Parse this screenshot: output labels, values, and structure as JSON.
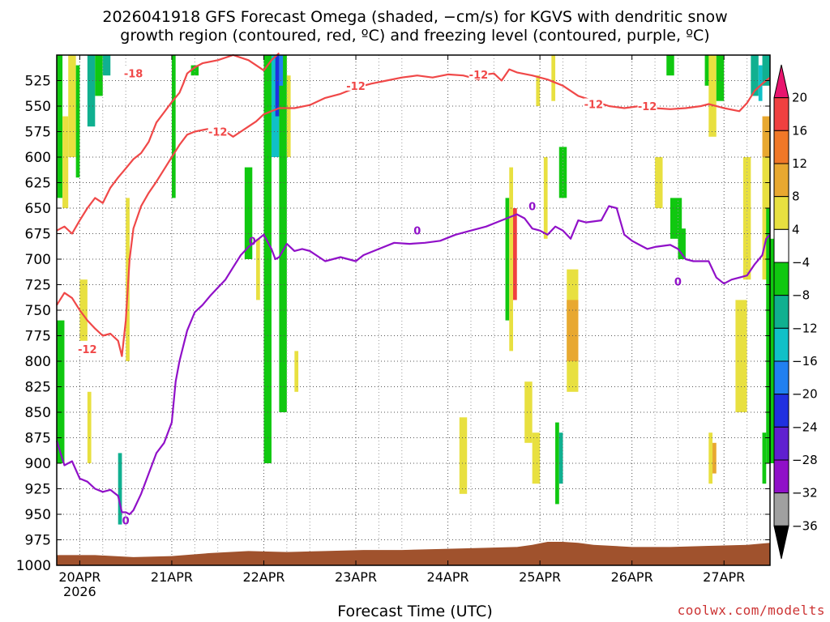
{
  "title": {
    "line1": "2026041918 GFS Forecast Omega (shaded, −cm/s) for KGVS with dendritic snow",
    "line2": "growth region (contoured, red, ºC) and freezing level (contoured, purple, ºC)"
  },
  "credit": "coolwx.com/modelts",
  "chart_data": {
    "type": "heatmap",
    "xlabel": "Forecast Time (UTC)",
    "x_ticks": [
      "20APR",
      "21APR",
      "22APR",
      "23APR",
      "24APR",
      "25APR",
      "26APR",
      "27APR"
    ],
    "x_year_label": "2026",
    "x_range_hours": [
      0,
      186
    ],
    "y_scale": "pressure (hPa), increasing downward",
    "y_ticks": [
      525,
      550,
      575,
      600,
      625,
      650,
      675,
      700,
      725,
      750,
      775,
      800,
      825,
      850,
      875,
      900,
      925,
      950,
      975,
      1000
    ],
    "y_range": [
      500,
      1000
    ],
    "grid": "dotted",
    "colorbar": {
      "labels": [
        "20",
        "16",
        "12",
        "8",
        "4",
        "−4",
        "−8",
        "−12",
        "−16",
        "−20",
        "−24",
        "−28",
        "−32",
        "−36"
      ],
      "colors": [
        "#e8156e",
        "#f04040",
        "#f07828",
        "#e8a830",
        "#e8e040",
        "#ffffff",
        "#10c810",
        "#10b090",
        "#10c0c8",
        "#2080f0",
        "#2030e0",
        "#6020d0",
        "#9010c8",
        "#a0a0a0",
        "#000000"
      ]
    },
    "contour_labels": {
      "dgz_red": [
        "-18",
        "-12",
        "-12",
        "-12",
        "-12",
        "-12",
        "-12"
      ],
      "freezing_purple": [
        "0",
        "0",
        "0",
        "0",
        "0"
      ]
    },
    "series": [
      {
        "color": "#f04848",
        "points": [
          [
            0,
            672
          ],
          [
            2,
            668
          ],
          [
            4,
            675
          ],
          [
            6,
            662
          ],
          [
            8,
            650
          ],
          [
            10,
            640
          ],
          [
            12,
            645
          ],
          [
            14,
            630
          ],
          [
            16,
            620
          ],
          [
            18,
            611
          ],
          [
            20,
            602
          ],
          [
            22,
            596
          ],
          [
            24,
            585
          ],
          [
            26,
            566
          ],
          [
            28,
            556
          ],
          [
            30,
            546
          ],
          [
            32,
            537
          ],
          [
            33,
            528
          ],
          [
            34,
            518
          ],
          [
            36,
            512
          ],
          [
            38,
            508
          ],
          [
            42,
            505
          ],
          [
            46,
            500
          ],
          [
            50,
            505
          ],
          [
            54,
            515
          ],
          [
            56,
            505
          ],
          [
            58,
            498
          ]
        ]
      },
      {
        "color": "#f04848",
        "points": [
          [
            0,
            745
          ],
          [
            2,
            733
          ],
          [
            4,
            738
          ],
          [
            6,
            750
          ],
          [
            8,
            760
          ],
          [
            10,
            768
          ],
          [
            12,
            775
          ],
          [
            14,
            773
          ],
          [
            16,
            780
          ],
          [
            17,
            795
          ],
          [
            18,
            760
          ],
          [
            19,
            700
          ],
          [
            20,
            670
          ],
          [
            22,
            648
          ],
          [
            24,
            635
          ],
          [
            26,
            624
          ],
          [
            28,
            612
          ],
          [
            30,
            600
          ],
          [
            32,
            588
          ],
          [
            34,
            578
          ],
          [
            36,
            575
          ],
          [
            40,
            572
          ],
          [
            44,
            575
          ],
          [
            46,
            580
          ],
          [
            48,
            575
          ],
          [
            50,
            570
          ],
          [
            52,
            565
          ],
          [
            54,
            558
          ],
          [
            56,
            555
          ],
          [
            58,
            552
          ],
          [
            62,
            552
          ],
          [
            66,
            549
          ],
          [
            70,
            542
          ],
          [
            74,
            538
          ],
          [
            78,
            532
          ],
          [
            82,
            528
          ],
          [
            86,
            525
          ],
          [
            90,
            522
          ],
          [
            94,
            520
          ],
          [
            98,
            522
          ],
          [
            102,
            519
          ],
          [
            106,
            520
          ],
          [
            110,
            524
          ],
          [
            112,
            519
          ],
          [
            114,
            518
          ],
          [
            116,
            525
          ],
          [
            118,
            514
          ],
          [
            120,
            517
          ],
          [
            124,
            520
          ],
          [
            128,
            524
          ],
          [
            132,
            530
          ],
          [
            136,
            540
          ],
          [
            140,
            545
          ],
          [
            144,
            550
          ],
          [
            148,
            552
          ],
          [
            152,
            550
          ],
          [
            156,
            552
          ],
          [
            160,
            553
          ],
          [
            164,
            552
          ],
          [
            168,
            550
          ],
          [
            170,
            548
          ],
          [
            174,
            552
          ],
          [
            178,
            555
          ],
          [
            180,
            547
          ],
          [
            182,
            535
          ],
          [
            184,
            528
          ],
          [
            186,
            522
          ]
        ]
      },
      {
        "color": "#9010c8",
        "points": [
          [
            0,
            878
          ],
          [
            2,
            902
          ],
          [
            4,
            898
          ],
          [
            6,
            915
          ],
          [
            8,
            918
          ],
          [
            10,
            925
          ],
          [
            12,
            928
          ],
          [
            14,
            926
          ],
          [
            16,
            932
          ],
          [
            17,
            948
          ],
          [
            18,
            948
          ],
          [
            19,
            950
          ],
          [
            20,
            946
          ],
          [
            22,
            930
          ],
          [
            24,
            910
          ],
          [
            26,
            890
          ],
          [
            28,
            880
          ],
          [
            30,
            860
          ],
          [
            31,
            820
          ],
          [
            32,
            800
          ],
          [
            34,
            770
          ],
          [
            36,
            752
          ],
          [
            38,
            745
          ],
          [
            40,
            736
          ],
          [
            42,
            728
          ],
          [
            44,
            720
          ],
          [
            46,
            708
          ],
          [
            48,
            696
          ],
          [
            50,
            688
          ],
          [
            52,
            682
          ],
          [
            54,
            676
          ],
          [
            56,
            690
          ],
          [
            57,
            700
          ],
          [
            58,
            698
          ],
          [
            60,
            685
          ],
          [
            62,
            692
          ],
          [
            64,
            690
          ],
          [
            66,
            692
          ],
          [
            70,
            702
          ],
          [
            74,
            698
          ],
          [
            78,
            702
          ],
          [
            80,
            696
          ],
          [
            84,
            690
          ],
          [
            88,
            684
          ],
          [
            92,
            685
          ],
          [
            96,
            684
          ],
          [
            100,
            682
          ],
          [
            104,
            676
          ],
          [
            108,
            672
          ],
          [
            112,
            668
          ],
          [
            116,
            662
          ],
          [
            120,
            656
          ],
          [
            122,
            660
          ],
          [
            124,
            670
          ],
          [
            126,
            672
          ],
          [
            128,
            676
          ],
          [
            130,
            668
          ],
          [
            132,
            672
          ],
          [
            134,
            680
          ],
          [
            136,
            662
          ],
          [
            138,
            664
          ],
          [
            142,
            662
          ],
          [
            144,
            648
          ],
          [
            146,
            650
          ],
          [
            148,
            676
          ],
          [
            150,
            682
          ],
          [
            152,
            686
          ],
          [
            154,
            690
          ],
          [
            156,
            688
          ],
          [
            160,
            686
          ],
          [
            162,
            690
          ],
          [
            164,
            700
          ],
          [
            166,
            702
          ],
          [
            170,
            702
          ],
          [
            172,
            718
          ],
          [
            174,
            724
          ],
          [
            176,
            720
          ],
          [
            178,
            718
          ],
          [
            180,
            716
          ],
          [
            182,
            705
          ],
          [
            184,
            696
          ],
          [
            185,
            680
          ],
          [
            186,
            676
          ]
        ]
      }
    ],
    "terrain_color": "#a0522d",
    "terrain_surface_hpa": [
      [
        0,
        990
      ],
      [
        10,
        990
      ],
      [
        20,
        992
      ],
      [
        30,
        991
      ],
      [
        40,
        988
      ],
      [
        50,
        986
      ],
      [
        60,
        987
      ],
      [
        70,
        986
      ],
      [
        80,
        985
      ],
      [
        90,
        985
      ],
      [
        100,
        984
      ],
      [
        110,
        983
      ],
      [
        120,
        982
      ],
      [
        124,
        980
      ],
      [
        128,
        977
      ],
      [
        132,
        977
      ],
      [
        136,
        978
      ],
      [
        140,
        980
      ],
      [
        150,
        982
      ],
      [
        160,
        982
      ],
      [
        170,
        981
      ],
      [
        180,
        980
      ],
      [
        186,
        978
      ]
    ]
  }
}
